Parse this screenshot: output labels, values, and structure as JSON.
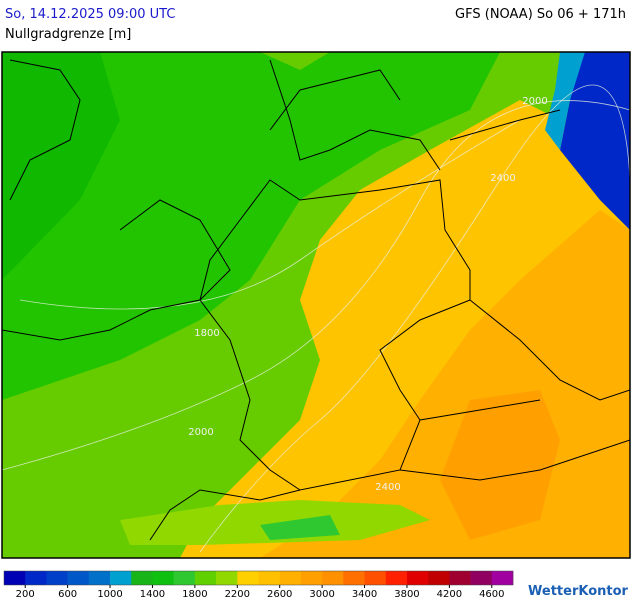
{
  "header": {
    "datetime": "So, 14.12.2025 09:00 UTC",
    "model": "GFS (NOAA) So 06 + 171h",
    "parameter": "Nullgradgrenze [m]"
  },
  "map": {
    "contour_labels": [
      "2000",
      "2400",
      "1800",
      "2000",
      "2400"
    ]
  },
  "colorbar": {
    "lim": [
      0,
      4800
    ],
    "colors": [
      "#0000b4",
      "#0028c8",
      "#0040c8",
      "#0058c8",
      "#0070c8",
      "#00a0d0",
      "#18b418",
      "#10c010",
      "#30c830",
      "#60d000",
      "#90d800",
      "#ffd000",
      "#ffc000",
      "#ffb000",
      "#ffa000",
      "#ff9000",
      "#ff7000",
      "#ff5000",
      "#ff2000",
      "#e00000",
      "#c00000",
      "#a00030",
      "#900060",
      "#a000a0"
    ],
    "ticks": [
      200,
      600,
      1000,
      1400,
      1800,
      2200,
      2600,
      3000,
      3400,
      3800,
      4200,
      4600
    ]
  },
  "logo": "WetterKontor"
}
